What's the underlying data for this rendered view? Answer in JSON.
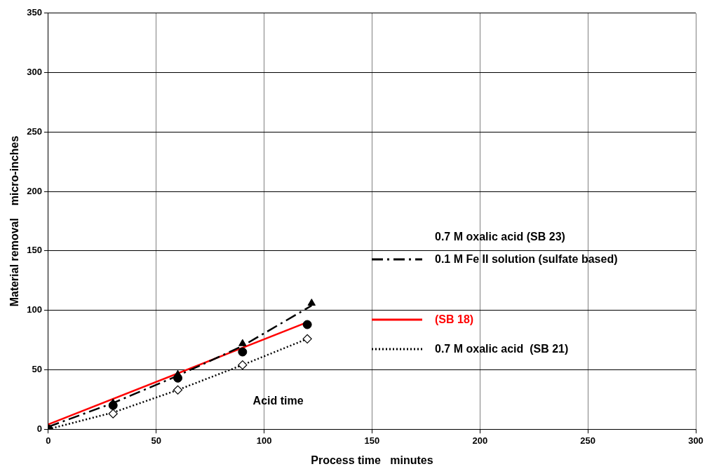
{
  "chart_data": {
    "type": "scatter",
    "xlabel": "Process time   minutes",
    "ylabel": "Material removal    micro-inches",
    "legend_title": "0.7 M oxalic acid   (SB 23)",
    "annotations": [
      "Acid time"
    ],
    "xlim": [
      0,
      300
    ],
    "xticks": [
      0,
      50,
      100,
      150,
      200,
      250,
      300
    ],
    "ylim": [
      0,
      350
    ],
    "yticks": [
      0,
      50,
      100,
      150,
      200,
      250,
      300,
      350
    ],
    "grid": true,
    "legend": "right",
    "series": [
      {
        "type": "scatter",
        "marker": "triangle",
        "color": "#000000",
        "x": [
          30,
          60,
          90,
          122
        ],
        "values": [
          22,
          46,
          72,
          106
        ]
      },
      {
        "type": "scatter",
        "marker": "circle",
        "color": "#000000",
        "x": [
          0,
          30,
          60,
          90,
          120
        ],
        "values": [
          0,
          20,
          43,
          65,
          88
        ]
      },
      {
        "type": "scatter",
        "marker": "diamond",
        "color": "#000000",
        "x": [
          30,
          60,
          90,
          120
        ],
        "values": [
          13,
          33,
          54,
          76
        ]
      },
      {
        "type": "line",
        "name": "0.1 M Fe II solution (sulfate based)",
        "line_style": "dashdot",
        "marker": "none",
        "color": "#000000",
        "x": [
          0,
          30,
          60,
          90,
          122
        ],
        "values": [
          2,
          22,
          45,
          70,
          104
        ]
      },
      {
        "type": "line",
        "name": "(SB 18)",
        "line_style": "solid",
        "marker": "none",
        "color": "#ff0000",
        "x": [
          0,
          120
        ],
        "values": [
          4,
          90
        ]
      },
      {
        "type": "line",
        "name": "0.7 M oxalic acid  (SB 21)",
        "line_style": "dotted",
        "marker": "none",
        "color": "#000000",
        "x": [
          0,
          30,
          60,
          90,
          120
        ],
        "values": [
          0,
          14,
          33,
          54,
          76
        ]
      }
    ]
  }
}
